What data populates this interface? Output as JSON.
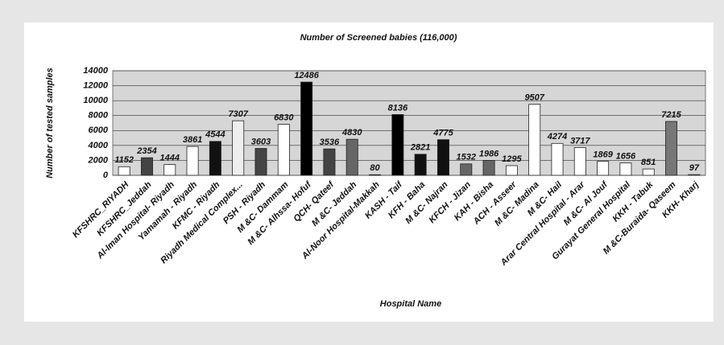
{
  "chart_data": {
    "type": "bar",
    "title": "Number of Screened babies (116,000)",
    "x_label": "Hospital Name",
    "y_label": "Number of tested samples",
    "categories": [
      "KFSHRC_RIYADH",
      "KFSHRC_Jeddah",
      "Al-Iman Hospital- Riyadh",
      "Yamamah - Riyadh",
      "KFMC - Riyadh",
      "Riyadh Medical Complex...",
      "PSH - Riyadh",
      "M &C- Dammam",
      "M &C- Alhssa- Hofuf",
      "QCH- Qateef",
      "M &C- Jeddah",
      "Al-Noor Hospital-Makkah",
      "KASH - Taif",
      "KFH - Baha",
      "M &C- Najran",
      "KFCH - Jizan",
      "KAH - Bisha",
      "ACH - Asseer",
      "M &C- Madina",
      "M &C- Hail",
      "Arar Central Hospital - Arar",
      "M &C- Al Jouf",
      "Gurayat General Hospital",
      "KKH - Tabuk",
      "M &C-Buraida- Qaseem",
      "KKH- Kharj"
    ],
    "values": [
      1152,
      2354,
      1444,
      3861,
      4544,
      7307,
      3603,
      6830,
      12486,
      3536,
      4830,
      80,
      8136,
      2821,
      4775,
      1532,
      1986,
      1295,
      9507,
      4274,
      3717,
      1869,
      1656,
      851,
      7215,
      97
    ],
    "colors": [
      "#ffffff",
      "#444444",
      "#ffffff",
      "#ffffff",
      "#111111",
      "#eeeeee",
      "#444444",
      "#ffffff",
      "#000000",
      "#444444",
      "#666666",
      "#666666",
      "#000000",
      "#111111",
      "#111111",
      "#666666",
      "#666666",
      "#ffffff",
      "#ffffff",
      "#ffffff",
      "#ffffff",
      "#ffffff",
      "#ffffff",
      "#ffffff",
      "#777777",
      "#ffffff"
    ],
    "ylim": [
      0,
      14000
    ],
    "yticks": [
      0,
      2000,
      4000,
      6000,
      8000,
      10000,
      12000,
      14000
    ],
    "grid": true
  }
}
